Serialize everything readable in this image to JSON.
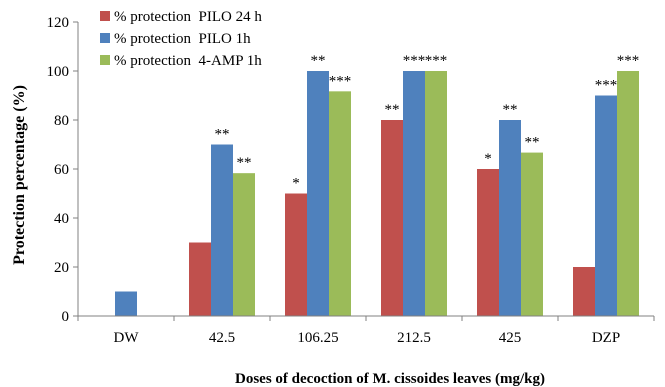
{
  "chart_data": {
    "type": "bar",
    "title": "",
    "xlabel": "Doses of decoction of M. cissoides leaves (mg/kg)",
    "ylabel": "Protection percentage (%)",
    "ylim": [
      0,
      120
    ],
    "yticks": [
      0,
      20,
      40,
      60,
      80,
      100,
      120
    ],
    "categories": [
      "DW",
      "42.5",
      "106.25",
      "212.5",
      "425",
      "DZP"
    ],
    "legend_position": "top-left",
    "grid": false,
    "series": [
      {
        "name": "% protection  PILO 24 h",
        "color": "#c0504d",
        "values": [
          0,
          30,
          50,
          80,
          60,
          20
        ],
        "labels": [
          "",
          "",
          "*",
          "**",
          "*",
          ""
        ]
      },
      {
        "name": "% protection  PILO 1h",
        "color": "#4f81bd",
        "values": [
          10,
          70,
          100,
          100,
          80,
          90
        ],
        "labels": [
          "",
          "**",
          "**",
          "***",
          "**",
          "***"
        ]
      },
      {
        "name": "% protection  4-AMP 1h",
        "color": "#9bbb59",
        "values": [
          0,
          58.3,
          91.7,
          100,
          66.7,
          100
        ],
        "labels": [
          "",
          "**",
          "***",
          "***",
          "**",
          "***"
        ]
      }
    ]
  }
}
